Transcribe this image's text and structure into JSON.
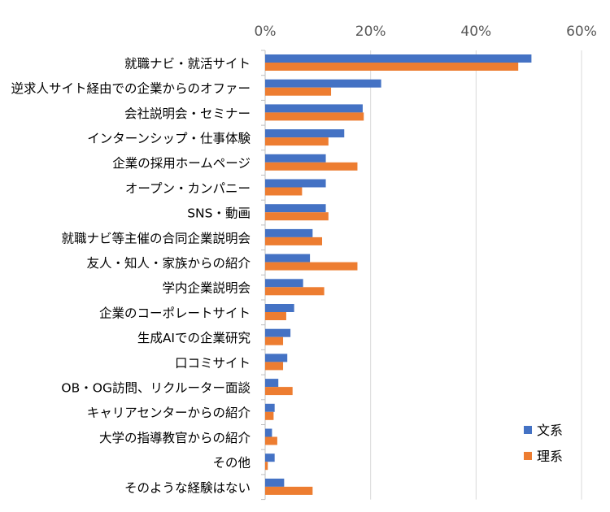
{
  "chart_data": {
    "type": "bar",
    "orientation": "horizontal",
    "categories": [
      "就職ナビ・就活サイト",
      "逆求人サイト経由での企業からのオファー",
      "会社説明会・セミナー",
      "インターンシップ・仕事体験",
      "企業の採用ホームページ",
      "オープン・カンパニー",
      "SNS・動画",
      "就職ナビ等主催の合同企業説明会",
      "友人・知人・家族からの紹介",
      "学内企業説明会",
      "企業のコーポレートサイト",
      "生成AIでの企業研究",
      "口コミサイト",
      "OB・OG訪問、リクルーター面談",
      "キャリアセンターからの紹介",
      "大学の指導教官からの紹介",
      "その他",
      "そのような経験はない"
    ],
    "series": [
      {
        "name": "文系",
        "color": "#4472C4",
        "values": [
          50.5,
          22.0,
          18.5,
          15.0,
          11.5,
          11.5,
          11.5,
          9.0,
          8.5,
          7.2,
          5.5,
          4.8,
          4.2,
          2.5,
          1.8,
          1.3,
          1.8,
          3.6
        ]
      },
      {
        "name": "理系",
        "color": "#ED7D31",
        "values": [
          48.0,
          12.5,
          18.7,
          12.0,
          17.5,
          7.0,
          12.0,
          10.8,
          17.5,
          11.2,
          4.0,
          3.4,
          3.4,
          5.2,
          1.6,
          2.3,
          0.5,
          9.0
        ]
      }
    ],
    "ticks": [
      "0%",
      "20%",
      "40%",
      "60%"
    ],
    "xlim": [
      0,
      60
    ],
    "axis_position": "top",
    "grid": true,
    "legend_position": "bottom-right"
  }
}
